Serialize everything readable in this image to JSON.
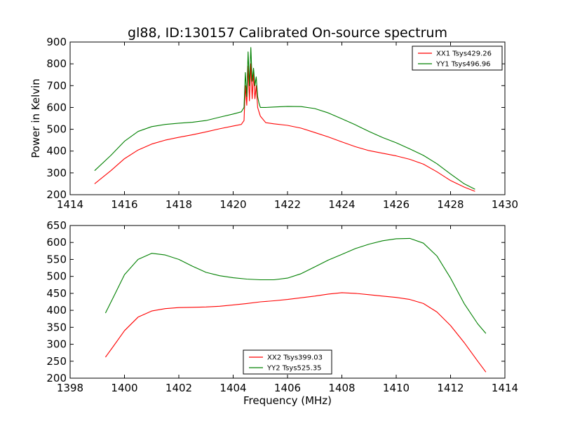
{
  "figure": {
    "title": "gl88, ID:130157 Calibrated On-source spectrum"
  },
  "chart_data": [
    {
      "type": "line",
      "title": "gl88, ID:130157 Calibrated On-source spectrum",
      "xlabel": "",
      "ylabel": "Power in Kelvin",
      "xlim": [
        1414,
        1430
      ],
      "ylim": [
        200,
        900
      ],
      "xticks": [
        1414,
        1416,
        1418,
        1420,
        1422,
        1424,
        1426,
        1428,
        1430
      ],
      "yticks": [
        200,
        300,
        400,
        500,
        600,
        700,
        800,
        900
      ],
      "grid": false,
      "legend_position": "top-right",
      "series": [
        {
          "name": "XX1 Tsys429.26",
          "color": "#ff0000",
          "x": [
            1414.9,
            1415.5,
            1416.0,
            1416.5,
            1417.0,
            1417.5,
            1418.0,
            1418.5,
            1419.0,
            1419.5,
            1420.0,
            1420.3,
            1420.4,
            1420.45,
            1420.5,
            1420.55,
            1420.6,
            1420.65,
            1420.7,
            1420.75,
            1420.8,
            1420.85,
            1420.9,
            1420.95,
            1421.0,
            1421.2,
            1421.5,
            1422.0,
            1422.5,
            1423.0,
            1423.5,
            1424.0,
            1424.5,
            1425.0,
            1425.5,
            1426.0,
            1426.5,
            1427.0,
            1427.5,
            1428.0,
            1428.5,
            1428.9
          ],
          "values": [
            250,
            310,
            365,
            405,
            432,
            450,
            463,
            475,
            488,
            502,
            515,
            522,
            540,
            700,
            610,
            790,
            630,
            800,
            640,
            760,
            640,
            700,
            600,
            580,
            560,
            530,
            525,
            518,
            505,
            485,
            465,
            442,
            420,
            402,
            390,
            378,
            362,
            340,
            305,
            265,
            235,
            215
          ]
        },
        {
          "name": "YY1 Tsys496.96",
          "color": "#008000",
          "x": [
            1414.9,
            1415.5,
            1416.0,
            1416.5,
            1417.0,
            1417.5,
            1418.0,
            1418.5,
            1419.0,
            1419.5,
            1420.0,
            1420.3,
            1420.4,
            1420.45,
            1420.5,
            1420.55,
            1420.6,
            1420.65,
            1420.7,
            1420.75,
            1420.8,
            1420.85,
            1420.9,
            1420.95,
            1421.0,
            1421.2,
            1421.5,
            1422.0,
            1422.5,
            1423.0,
            1423.5,
            1424.0,
            1424.5,
            1425.0,
            1425.5,
            1426.0,
            1426.5,
            1427.0,
            1427.5,
            1428.0,
            1428.5,
            1428.9
          ],
          "values": [
            310,
            380,
            445,
            490,
            512,
            522,
            528,
            532,
            540,
            555,
            570,
            580,
            600,
            760,
            650,
            855,
            700,
            875,
            720,
            780,
            700,
            740,
            650,
            620,
            600,
            600,
            602,
            605,
            604,
            595,
            575,
            548,
            520,
            490,
            462,
            438,
            410,
            380,
            342,
            295,
            250,
            225
          ]
        }
      ]
    },
    {
      "type": "line",
      "title": "",
      "xlabel": "Frequency (MHz)",
      "ylabel": "",
      "xlim": [
        1398,
        1414
      ],
      "ylim": [
        200,
        650
      ],
      "xticks": [
        1398,
        1400,
        1402,
        1404,
        1406,
        1408,
        1410,
        1412,
        1414
      ],
      "yticks": [
        200,
        250,
        300,
        350,
        400,
        450,
        500,
        550,
        600,
        650
      ],
      "grid": false,
      "legend_position": "bottom-center",
      "series": [
        {
          "name": "XX2 Tsys399.03",
          "color": "#ff0000",
          "x": [
            1399.3,
            1399.6,
            1400.0,
            1400.5,
            1401.0,
            1401.5,
            1402.0,
            1402.5,
            1403.0,
            1403.5,
            1404.0,
            1404.5,
            1405.0,
            1405.5,
            1406.0,
            1406.5,
            1407.0,
            1407.5,
            1408.0,
            1408.5,
            1409.0,
            1409.5,
            1410.0,
            1410.5,
            1411.0,
            1411.5,
            1412.0,
            1412.5,
            1413.0,
            1413.3
          ],
          "values": [
            262,
            295,
            340,
            380,
            398,
            405,
            408,
            409,
            410,
            412,
            416,
            420,
            425,
            428,
            432,
            437,
            442,
            448,
            452,
            450,
            446,
            442,
            438,
            432,
            420,
            395,
            355,
            305,
            250,
            218
          ]
        },
        {
          "name": "YY2 Tsys525.35",
          "color": "#008000",
          "x": [
            1399.3,
            1399.6,
            1400.0,
            1400.5,
            1401.0,
            1401.5,
            1402.0,
            1402.5,
            1403.0,
            1403.5,
            1404.0,
            1404.5,
            1405.0,
            1405.5,
            1406.0,
            1406.5,
            1407.0,
            1407.5,
            1408.0,
            1408.5,
            1409.0,
            1409.5,
            1410.0,
            1410.5,
            1411.0,
            1411.5,
            1412.0,
            1412.5,
            1413.0,
            1413.3
          ],
          "values": [
            392,
            440,
            505,
            550,
            568,
            563,
            550,
            530,
            512,
            502,
            496,
            492,
            490,
            490,
            495,
            508,
            528,
            548,
            565,
            582,
            595,
            605,
            611,
            612,
            598,
            560,
            495,
            420,
            360,
            332
          ]
        }
      ]
    }
  ]
}
